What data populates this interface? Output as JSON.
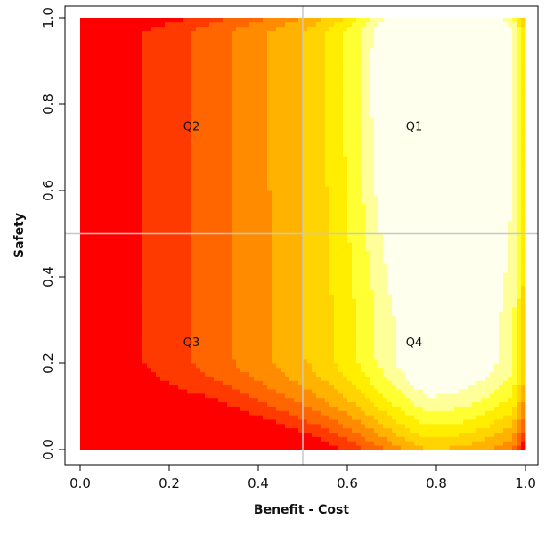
{
  "chart_data": {
    "type": "heatmap",
    "xlabel": "Benefit - Cost",
    "ylabel": "Safety",
    "xlim": [
      0.0,
      1.0
    ],
    "ylim": [
      0.0,
      1.0
    ],
    "x_ticks": [
      "0.0",
      "0.2",
      "0.4",
      "0.6",
      "0.8",
      "1.0"
    ],
    "y_ticks": [
      "0.0",
      "0.2",
      "0.4",
      "0.6",
      "0.8",
      "1.0"
    ],
    "reference_lines": {
      "x": 0.5,
      "y": 0.5
    },
    "quadrant_labels": [
      {
        "text": "Q1",
        "x": 0.75,
        "y": 0.75
      },
      {
        "text": "Q2",
        "x": 0.25,
        "y": 0.75
      },
      {
        "text": "Q3",
        "x": 0.25,
        "y": 0.25
      },
      {
        "text": "Q4",
        "x": 0.75,
        "y": 0.25
      }
    ],
    "palette": [
      "#ff0000",
      "#ff3a00",
      "#ff6600",
      "#ff8c00",
      "#ffb300",
      "#ffd400",
      "#ffee00",
      "#ffff33",
      "#ffff99",
      "#ffffee"
    ],
    "grid": false,
    "legend": "none"
  }
}
